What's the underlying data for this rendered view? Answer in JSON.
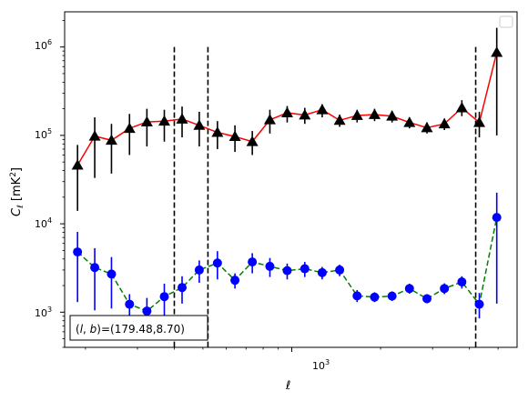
{
  "chart_data": {
    "type": "scatter",
    "title": "",
    "xlabel": "ℓ",
    "ylabel_main": "C",
    "ylabel_sub": "ℓ",
    "ylabel_unit": "[mK",
    "ylabel_unit_exp": "2",
    "ylabel_unit_close": "]",
    "xscale": "log",
    "yscale": "log",
    "xlim": [
      170,
      5800
    ],
    "ylim": [
      400,
      2500000
    ],
    "legend": "top-right (empty)",
    "grid": false,
    "x_tick_label": {
      "base": "10",
      "exp": "3"
    },
    "y_tick_labels": [
      {
        "base": "10",
        "exp": "3",
        "value": 1000
      },
      {
        "base": "10",
        "exp": "4",
        "value": 10000
      },
      {
        "base": "10",
        "exp": "5",
        "value": 100000
      },
      {
        "base": "10",
        "exp": "6",
        "value": 1000000
      }
    ],
    "vlines": [
      400,
      520,
      4200
    ],
    "annotation": "(l, b)=(179.48,8.70)",
    "annotation_parts": {
      "open": "(",
      "l": "l",
      "comma": ", ",
      "b": "b",
      "close": ")=(179.48,8.70)"
    },
    "series": [
      {
        "marker": "triangle",
        "color": "#000000",
        "line_color": "#ff0000",
        "line_style": "solid",
        "points": [
          {
            "x": 188,
            "y": 46000,
            "lo": 14000,
            "hi": 78000
          },
          {
            "x": 215,
            "y": 98000,
            "lo": 33000,
            "hi": 160000
          },
          {
            "x": 245,
            "y": 88000,
            "lo": 37000,
            "hi": 135000
          },
          {
            "x": 282,
            "y": 120000,
            "lo": 60000,
            "hi": 175000
          },
          {
            "x": 323,
            "y": 142000,
            "lo": 75000,
            "hi": 200000
          },
          {
            "x": 370,
            "y": 145000,
            "lo": 85000,
            "hi": 195000
          },
          {
            "x": 425,
            "y": 153000,
            "lo": 95000,
            "hi": 212000
          },
          {
            "x": 486,
            "y": 130000,
            "lo": 75000,
            "hi": 185000
          },
          {
            "x": 560,
            "y": 108000,
            "lo": 70000,
            "hi": 145000
          },
          {
            "x": 642,
            "y": 97000,
            "lo": 65000,
            "hi": 130000
          },
          {
            "x": 735,
            "y": 85000,
            "lo": 60000,
            "hi": 112000
          },
          {
            "x": 843,
            "y": 150000,
            "lo": 105000,
            "hi": 195000
          },
          {
            "x": 965,
            "y": 180000,
            "lo": 140000,
            "hi": 215000
          },
          {
            "x": 1107,
            "y": 170000,
            "lo": 135000,
            "hi": 205000
          },
          {
            "x": 1268,
            "y": 195000,
            "lo": 160000,
            "hi": 225000
          },
          {
            "x": 1453,
            "y": 148000,
            "lo": 125000,
            "hi": 172000
          },
          {
            "x": 1665,
            "y": 168000,
            "lo": 140000,
            "hi": 195000
          },
          {
            "x": 1908,
            "y": 172000,
            "lo": 145000,
            "hi": 200000
          },
          {
            "x": 2187,
            "y": 165000,
            "lo": 140000,
            "hi": 190000
          },
          {
            "x": 2505,
            "y": 140000,
            "lo": 120000,
            "hi": 160000
          },
          {
            "x": 2871,
            "y": 122000,
            "lo": 105000,
            "hi": 140000
          },
          {
            "x": 3290,
            "y": 135000,
            "lo": 115000,
            "hi": 155000
          },
          {
            "x": 3770,
            "y": 205000,
            "lo": 165000,
            "hi": 250000
          },
          {
            "x": 4320,
            "y": 140000,
            "lo": 95000,
            "hi": 185000
          },
          {
            "x": 4950,
            "y": 870000,
            "lo": 100000,
            "hi": 1650000
          }
        ]
      },
      {
        "marker": "circle",
        "color": "#0000ff",
        "line_color": "#008000",
        "line_style": "dashed",
        "points": [
          {
            "x": 188,
            "y": 4800,
            "lo": 1300,
            "hi": 8100
          },
          {
            "x": 215,
            "y": 3200,
            "lo": 1050,
            "hi": 5300
          },
          {
            "x": 245,
            "y": 2700,
            "lo": 1100,
            "hi": 4200
          },
          {
            "x": 282,
            "y": 1230,
            "lo": 850,
            "hi": 1600
          },
          {
            "x": 323,
            "y": 1030,
            "lo": 650,
            "hi": 1450
          },
          {
            "x": 370,
            "y": 1500,
            "lo": 900,
            "hi": 2100
          },
          {
            "x": 425,
            "y": 1900,
            "lo": 1250,
            "hi": 2550
          },
          {
            "x": 486,
            "y": 3000,
            "lo": 2150,
            "hi": 3850
          },
          {
            "x": 560,
            "y": 3600,
            "lo": 2350,
            "hi": 4900
          },
          {
            "x": 642,
            "y": 2300,
            "lo": 1850,
            "hi": 2750
          },
          {
            "x": 735,
            "y": 3700,
            "lo": 2750,
            "hi": 4650
          },
          {
            "x": 843,
            "y": 3300,
            "lo": 2500,
            "hi": 4100
          },
          {
            "x": 965,
            "y": 2950,
            "lo": 2350,
            "hi": 3550
          },
          {
            "x": 1107,
            "y": 3100,
            "lo": 2500,
            "hi": 3700
          },
          {
            "x": 1268,
            "y": 2800,
            "lo": 2350,
            "hi": 3250
          },
          {
            "x": 1453,
            "y": 3000,
            "lo": 2550,
            "hi": 3450
          },
          {
            "x": 1665,
            "y": 1530,
            "lo": 1300,
            "hi": 1780
          },
          {
            "x": 1908,
            "y": 1480,
            "lo": 1300,
            "hi": 1680
          },
          {
            "x": 2187,
            "y": 1520,
            "lo": 1340,
            "hi": 1720
          },
          {
            "x": 2505,
            "y": 1850,
            "lo": 1620,
            "hi": 2100
          },
          {
            "x": 2871,
            "y": 1420,
            "lo": 1260,
            "hi": 1600
          },
          {
            "x": 3290,
            "y": 1850,
            "lo": 1600,
            "hi": 2120
          },
          {
            "x": 3770,
            "y": 2200,
            "lo": 1850,
            "hi": 2550
          },
          {
            "x": 4320,
            "y": 1230,
            "lo": 850,
            "hi": 1650
          },
          {
            "x": 4950,
            "y": 11800,
            "lo": 1250,
            "hi": 22500
          }
        ]
      }
    ]
  }
}
